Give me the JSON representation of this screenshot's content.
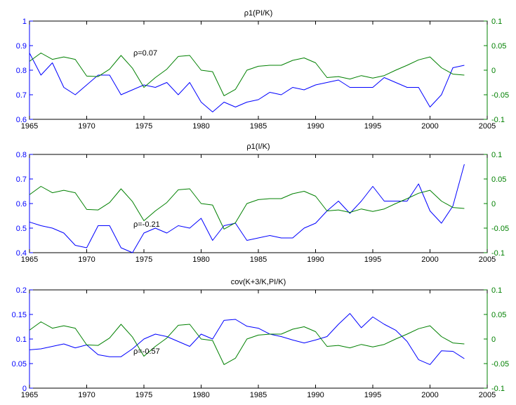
{
  "chart_data": [
    {
      "type": "line",
      "title": "ρ1(PI/K)",
      "annotation": "ρ=0.07",
      "x": [
        1965,
        1966,
        1967,
        1968,
        1969,
        1970,
        1971,
        1972,
        1973,
        1974,
        1975,
        1976,
        1977,
        1978,
        1979,
        1980,
        1981,
        1982,
        1983,
        1984,
        1985,
        1986,
        1987,
        1988,
        1989,
        1990,
        1991,
        1992,
        1993,
        1994,
        1995,
        1996,
        1997,
        1998,
        1999,
        2000,
        2001,
        2002,
        2003
      ],
      "xlim": [
        1965,
        2005
      ],
      "xticks": [
        1965,
        1970,
        1975,
        1980,
        1985,
        1990,
        1995,
        2000,
        2005
      ],
      "left_axis": {
        "ylim": [
          0.6,
          1.0
        ],
        "ticks": [
          0.6,
          0.7,
          0.8,
          0.9,
          1.0
        ],
        "tick_labels": [
          "0.6",
          "0.7",
          "0.8",
          "0.9",
          "1"
        ],
        "color": "#0000ff"
      },
      "right_axis": {
        "ylim": [
          -0.1,
          0.1
        ],
        "ticks": [
          -0.1,
          -0.05,
          0,
          0.05,
          0.1
        ],
        "tick_labels": [
          "-0.1",
          "-0.05",
          "0",
          "0.05",
          "0.1"
        ],
        "color": "#008000"
      },
      "series": [
        {
          "axis": "left",
          "color": "#0000ff",
          "values": [
            0.87,
            0.78,
            0.83,
            0.73,
            0.7,
            0.74,
            0.78,
            0.78,
            0.7,
            0.72,
            0.74,
            0.73,
            0.75,
            0.7,
            0.75,
            0.67,
            0.63,
            0.67,
            0.65,
            0.67,
            0.68,
            0.71,
            0.7,
            0.73,
            0.72,
            0.74,
            0.75,
            0.76,
            0.73,
            0.73,
            0.73,
            0.77,
            0.75,
            0.73,
            0.73,
            0.65,
            0.7,
            0.81,
            0.82
          ]
        },
        {
          "axis": "right",
          "color": "#008000",
          "values": [
            0.018,
            0.035,
            0.022,
            0.027,
            0.022,
            -0.012,
            -0.013,
            0.002,
            0.03,
            0.004,
            -0.035,
            -0.015,
            0.002,
            0.028,
            0.03,
            0.0,
            -0.003,
            -0.052,
            -0.039,
            0.0,
            0.008,
            0.01,
            0.01,
            0.02,
            0.025,
            0.015,
            -0.015,
            -0.013,
            -0.018,
            -0.011,
            -0.016,
            -0.011,
            0.0,
            0.01,
            0.021,
            0.027,
            0.005,
            -0.008,
            -0.01
          ]
        }
      ]
    },
    {
      "type": "line",
      "title": "ρ1(I/K)",
      "annotation": "ρ=-0.21",
      "x": [
        1965,
        1966,
        1967,
        1968,
        1969,
        1970,
        1971,
        1972,
        1973,
        1974,
        1975,
        1976,
        1977,
        1978,
        1979,
        1980,
        1981,
        1982,
        1983,
        1984,
        1985,
        1986,
        1987,
        1988,
        1989,
        1990,
        1991,
        1992,
        1993,
        1994,
        1995,
        1996,
        1997,
        1998,
        1999,
        2000,
        2001,
        2002,
        2003
      ],
      "xlim": [
        1965,
        2005
      ],
      "xticks": [
        1965,
        1970,
        1975,
        1980,
        1985,
        1990,
        1995,
        2000,
        2005
      ],
      "left_axis": {
        "ylim": [
          0.4,
          0.8
        ],
        "ticks": [
          0.4,
          0.5,
          0.6,
          0.7,
          0.8
        ],
        "tick_labels": [
          "0.4",
          "0.5",
          "0.6",
          "0.7",
          "0.8"
        ],
        "color": "#0000ff"
      },
      "right_axis": {
        "ylim": [
          -0.1,
          0.1
        ],
        "ticks": [
          -0.1,
          -0.05,
          0,
          0.05,
          0.1
        ],
        "tick_labels": [
          "-0.1",
          "-0.05",
          "0",
          "0.05",
          "0.1"
        ],
        "color": "#008000"
      },
      "series": [
        {
          "axis": "left",
          "color": "#0000ff",
          "values": [
            0.525,
            0.51,
            0.5,
            0.48,
            0.43,
            0.42,
            0.51,
            0.51,
            0.42,
            0.4,
            0.48,
            0.5,
            0.48,
            0.51,
            0.5,
            0.54,
            0.45,
            0.51,
            0.52,
            0.45,
            0.46,
            0.47,
            0.46,
            0.46,
            0.5,
            0.52,
            0.57,
            0.61,
            0.56,
            0.61,
            0.67,
            0.61,
            0.61,
            0.61,
            0.68,
            0.57,
            0.52,
            0.59,
            0.76
          ]
        },
        {
          "axis": "right",
          "color": "#008000",
          "values": [
            0.018,
            0.035,
            0.022,
            0.027,
            0.022,
            -0.012,
            -0.013,
            0.002,
            0.03,
            0.004,
            -0.035,
            -0.015,
            0.002,
            0.028,
            0.03,
            0.0,
            -0.003,
            -0.052,
            -0.039,
            0.0,
            0.008,
            0.01,
            0.01,
            0.02,
            0.025,
            0.015,
            -0.015,
            -0.013,
            -0.018,
            -0.011,
            -0.016,
            -0.011,
            0.0,
            0.01,
            0.021,
            0.027,
            0.005,
            -0.008,
            -0.01
          ]
        }
      ]
    },
    {
      "type": "line",
      "title": "cov(K+3/K,PI/K)",
      "annotation": "ρ=-0.57",
      "x": [
        1965,
        1966,
        1967,
        1968,
        1969,
        1970,
        1971,
        1972,
        1973,
        1974,
        1975,
        1976,
        1977,
        1978,
        1979,
        1980,
        1981,
        1982,
        1983,
        1984,
        1985,
        1986,
        1987,
        1988,
        1989,
        1990,
        1991,
        1992,
        1993,
        1994,
        1995,
        1996,
        1997,
        1998,
        1999,
        2000,
        2001,
        2002,
        2003
      ],
      "xlim": [
        1965,
        2005
      ],
      "xticks": [
        1965,
        1970,
        1975,
        1980,
        1985,
        1990,
        1995,
        2000,
        2005
      ],
      "left_axis": {
        "ylim": [
          0,
          0.2
        ],
        "ticks": [
          0,
          0.05,
          0.1,
          0.15,
          0.2
        ],
        "tick_labels": [
          "0",
          "0.05",
          "0.1",
          "0.15",
          "0.2"
        ],
        "color": "#0000ff"
      },
      "right_axis": {
        "ylim": [
          -0.1,
          0.1
        ],
        "ticks": [
          -0.1,
          -0.05,
          0,
          0.05,
          0.1
        ],
        "tick_labels": [
          "-0.1",
          "-0.05",
          "0",
          "0.05",
          "0.1"
        ],
        "color": "#008000"
      },
      "series": [
        {
          "axis": "left",
          "color": "#0000ff",
          "values": [
            0.078,
            0.08,
            0.085,
            0.09,
            0.082,
            0.088,
            0.068,
            0.064,
            0.064,
            0.08,
            0.1,
            0.11,
            0.105,
            0.095,
            0.085,
            0.11,
            0.1,
            0.138,
            0.14,
            0.126,
            0.122,
            0.11,
            0.105,
            0.098,
            0.092,
            0.098,
            0.105,
            0.13,
            0.152,
            0.123,
            0.145,
            0.13,
            0.118,
            0.095,
            0.058,
            0.048,
            0.076,
            0.075,
            0.06
          ]
        },
        {
          "axis": "right",
          "color": "#008000",
          "values": [
            0.018,
            0.035,
            0.022,
            0.027,
            0.022,
            -0.012,
            -0.013,
            0.002,
            0.03,
            0.004,
            -0.035,
            -0.015,
            0.002,
            0.028,
            0.03,
            0.0,
            -0.003,
            -0.052,
            -0.039,
            0.0,
            0.008,
            0.01,
            0.01,
            0.02,
            0.025,
            0.015,
            -0.015,
            -0.013,
            -0.018,
            -0.011,
            -0.016,
            -0.011,
            0.0,
            0.01,
            0.021,
            0.027,
            0.005,
            -0.008,
            -0.01
          ]
        }
      ]
    }
  ]
}
